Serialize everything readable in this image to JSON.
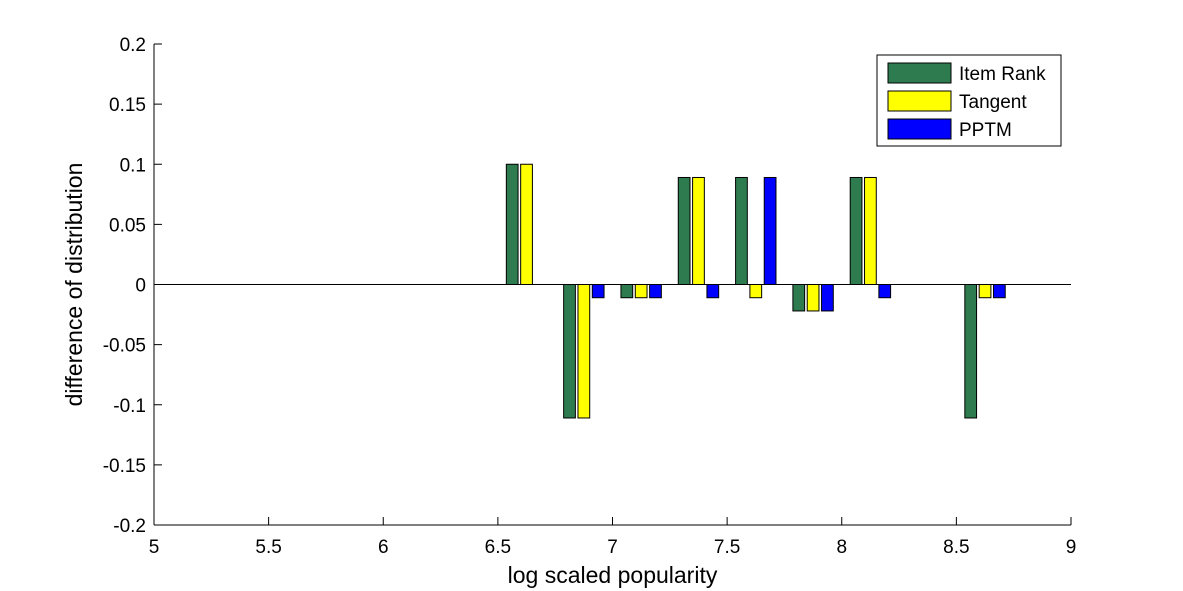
{
  "chart_data": {
    "type": "bar",
    "title": "",
    "xlabel": "log scaled popularity",
    "ylabel": "difference of distribution",
    "xlim": [
      5,
      9
    ],
    "ylim": [
      -0.2,
      0.2
    ],
    "xticks": [
      "5",
      "5.5",
      "6",
      "6.5",
      "7",
      "7.5",
      "8",
      "8.5",
      "9"
    ],
    "yticks": [
      "0.2",
      "0.15",
      "0.1",
      "0.05",
      "0",
      "-0.05",
      "-0.1",
      "-0.15",
      "-0.2"
    ],
    "grid": false,
    "legend_position": "top-right",
    "x": [
      6.625,
      6.875,
      7.125,
      7.375,
      7.625,
      7.875,
      8.125,
      8.625
    ],
    "series": [
      {
        "name": "Item Rank",
        "color": "#2e7b4f",
        "values": [
          0.1,
          -0.111,
          -0.011,
          0.089,
          0.089,
          -0.022,
          0.089,
          -0.111
        ]
      },
      {
        "name": "Tangent",
        "color": "#ffff00",
        "values": [
          0.1,
          -0.111,
          -0.011,
          0.089,
          -0.011,
          -0.022,
          0.089,
          -0.011
        ]
      },
      {
        "name": "PPTM",
        "color": "#0000ff",
        "values": [
          0,
          -0.011,
          -0.011,
          -0.011,
          0.089,
          -0.022,
          -0.011,
          -0.011
        ]
      }
    ]
  }
}
